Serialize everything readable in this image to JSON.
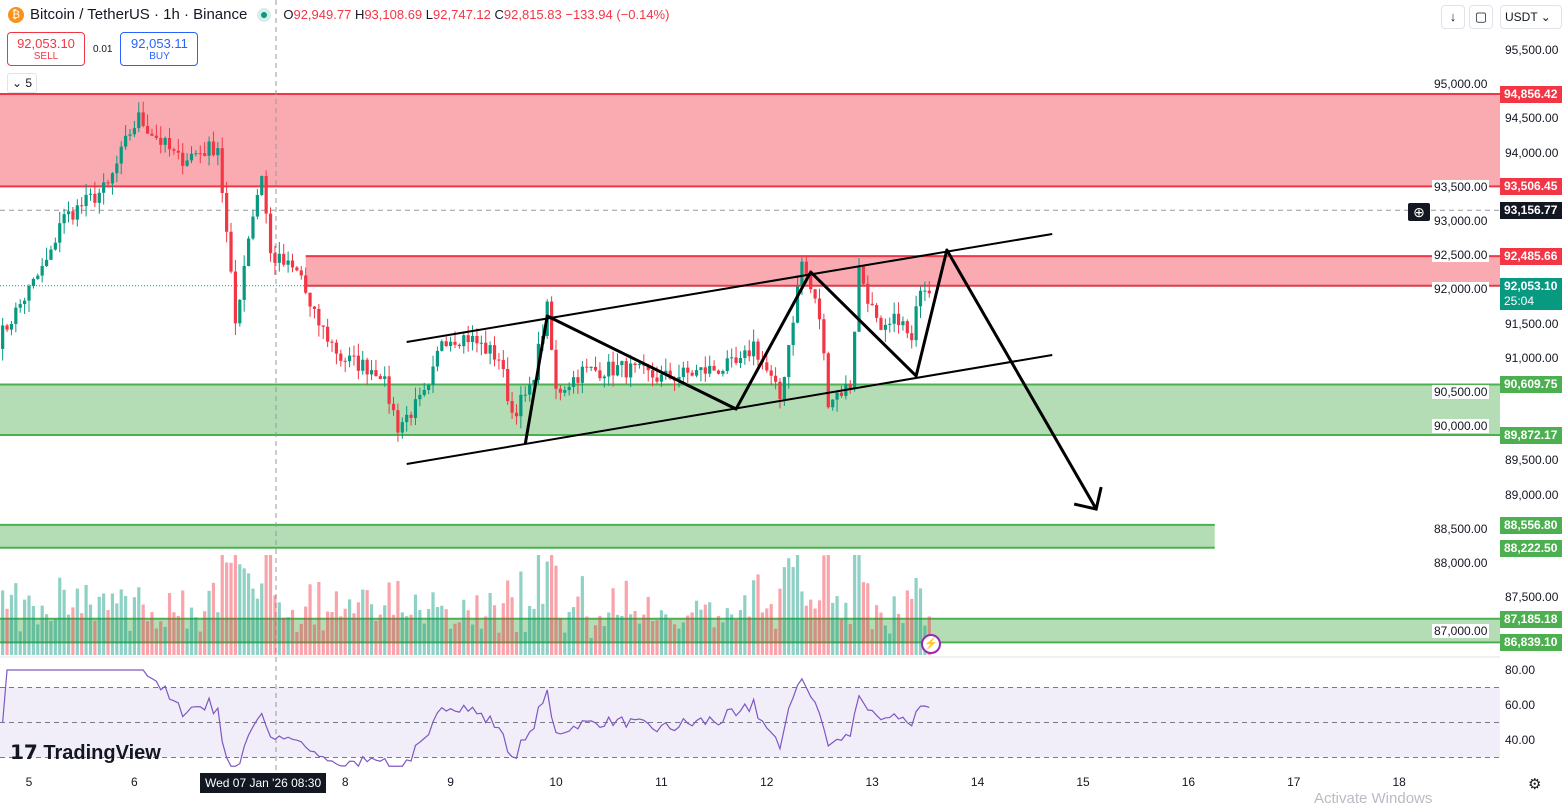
{
  "header": {
    "symbol": "Bitcoin / TetherUS · 1h · Binance",
    "o_label": "O",
    "o": "92,949.77",
    "h_label": "H",
    "h": "93,108.69",
    "l_label": "L",
    "l": "92,747.12",
    "c_label": "C",
    "c": "92,815.83",
    "change": "−133.94 (−0.14%)"
  },
  "trade": {
    "sell_price": "92,053.10",
    "sell_label": "SELL",
    "spread": "0.01",
    "buy_price": "92,053.11",
    "buy_label": "BUY"
  },
  "indicators_collapsed": "5",
  "toolbar": {
    "currency": "USDT",
    "down_icon": "arrow-down-icon",
    "fullscreen_icon": "fullscreen-icon"
  },
  "colors": {
    "up": "#089981",
    "down": "#f23645",
    "zone_red": "#f23645",
    "zone_green": "#4caf50",
    "rsi": "#7e57c2"
  },
  "price_axis": {
    "ticks": [
      "95,500.00",
      "95,000.00",
      "94,500.00",
      "94,000.00",
      "93,500.00",
      "93,000.00",
      "92,500.00",
      "92,000.00",
      "91,500.00",
      "91,000.00",
      "90,500.00",
      "90,000.00",
      "89,500.00",
      "89,000.00",
      "88,500.00",
      "88,000.00",
      "87,500.00",
      "87,000.00"
    ],
    "tick_values": [
      95500,
      95000,
      94500,
      94000,
      93500,
      93000,
      92500,
      92000,
      91500,
      91000,
      90500,
      90000,
      89500,
      89000,
      88500,
      88000,
      87500,
      87000
    ]
  },
  "price_labels": [
    {
      "text": "94,856.42",
      "value": 94856.42,
      "kind": "red"
    },
    {
      "text": "93,506.45",
      "value": 93506.45,
      "kind": "red"
    },
    {
      "text": "93,156.77",
      "value": 93156.77,
      "kind": "dark"
    },
    {
      "text": "92,485.66",
      "value": 92485.66,
      "kind": "red"
    },
    {
      "text": "92,053.10",
      "value": 92053.1,
      "kind": "last",
      "sub": "25:04"
    },
    {
      "text": "90,609.75",
      "value": 90609.75,
      "kind": "green"
    },
    {
      "text": "89,872.17",
      "value": 89872.17,
      "kind": "green"
    },
    {
      "text": "88,556.80",
      "value": 88556.8,
      "kind": "green"
    },
    {
      "text": "88,222.50",
      "value": 88222.5,
      "kind": "green"
    },
    {
      "text": "87,185.18",
      "value": 87185.18,
      "kind": "green"
    },
    {
      "text": "86,839.10",
      "value": 86839.1,
      "kind": "green"
    }
  ],
  "rsi_axis": {
    "ticks": [
      "80.00",
      "60.00",
      "40.00"
    ],
    "values": [
      80,
      60,
      40
    ],
    "upper": 70,
    "middle": 50,
    "lower": 30
  },
  "time_axis": {
    "ticks": [
      {
        "t": "5",
        "day": 5
      },
      {
        "t": "6",
        "day": 6
      },
      {
        "t": "8",
        "day": 8
      },
      {
        "t": "9",
        "day": 9
      },
      {
        "t": "10",
        "day": 10
      },
      {
        "t": "11",
        "day": 11
      },
      {
        "t": "12",
        "day": 12
      },
      {
        "t": "13",
        "day": 13
      },
      {
        "t": "14",
        "day": 14
      },
      {
        "t": "15",
        "day": 15
      },
      {
        "t": "16",
        "day": 16
      },
      {
        "t": "17",
        "day": 17
      },
      {
        "t": "18",
        "day": 18
      }
    ],
    "crosshair": "Wed 07 Jan '26   08:30"
  },
  "zones": [
    {
      "from": "01-04 12:00",
      "to": "01-20 00:00",
      "top": 94856.42,
      "bottom": 93506.45,
      "kind": "red"
    },
    {
      "from": "01-07 15:00",
      "to": "01-20 00:00",
      "top": 92485.66,
      "bottom": 92053.1,
      "kind": "red"
    },
    {
      "from": "01-04 12:00",
      "to": "01-20 00:00",
      "top": 90609.75,
      "bottom": 89872.17,
      "kind": "green"
    },
    {
      "from": "01-04 12:00",
      "to": "01-16 06:00",
      "top": 88556.8,
      "bottom": 88222.5,
      "kind": "green"
    },
    {
      "from": "01-04 12:00",
      "to": "01-20 00:00",
      "top": 87185.18,
      "bottom": 86839.1,
      "kind": "green"
    }
  ],
  "drawings": {
    "channel_upper": [
      [
        "01-08 14:00",
        91231
      ],
      [
        "01-14 17:00",
        92810
      ]
    ],
    "channel_lower": [
      [
        "01-08 14:00",
        89447
      ],
      [
        "01-14 17:00",
        91041
      ]
    ],
    "zigzag": [
      [
        "01-09 17:00",
        89740
      ],
      [
        "01-09 22:00",
        91611
      ],
      [
        "01-11 17:00",
        90251
      ],
      [
        "01-12 10:00",
        92254
      ],
      [
        "01-13 10:00",
        90734
      ],
      [
        "01-13 17:00",
        92576
      ],
      [
        "01-15 03:00",
        88789
      ]
    ]
  },
  "price_path": [
    [
      "01-04 17:00",
      91260
    ],
    [
      "01-05 05:00",
      92500
    ],
    [
      "01-05 07:00",
      93000
    ],
    [
      "01-05 18:00",
      93500
    ],
    [
      "01-05 23:00",
      94300
    ],
    [
      "01-06 01:00",
      94500
    ],
    [
      "01-06 10:00",
      93900
    ],
    [
      "01-06 19:00",
      94100
    ],
    [
      "01-06 23:00",
      91500
    ],
    [
      "01-07 02:00",
      92800
    ],
    [
      "01-07 05:00",
      93700
    ],
    [
      "01-07 07:00",
      92500
    ],
    [
      "01-07 14:00",
      92200
    ],
    [
      "01-07 16:00",
      91700
    ],
    [
      "01-07 23:00",
      91000
    ],
    [
      "01-08 08:00",
      90800
    ],
    [
      "01-08 12:00",
      90000
    ],
    [
      "01-08 19:00",
      90500
    ],
    [
      "01-08 22:00",
      91300
    ],
    [
      "01-09 04:00",
      91300
    ],
    [
      "01-09 11:00",
      91000
    ],
    [
      "01-09 14:00",
      90200
    ],
    [
      "01-09 18:00",
      90500
    ],
    [
      "01-09 22:00",
      91700
    ],
    [
      "01-10 00:00",
      90500
    ],
    [
      "01-10 06:00",
      90800
    ],
    [
      "01-10 15:00",
      90850
    ],
    [
      "01-11 00:00",
      90700
    ],
    [
      "01-11 09:00",
      90800
    ],
    [
      "01-11 18:00",
      90900
    ],
    [
      "01-11 21:00",
      91200
    ],
    [
      "01-12 03:00",
      90400
    ],
    [
      "01-12 08:00",
      92400
    ],
    [
      "01-12 12:00",
      91600
    ],
    [
      "01-12 14:00",
      90400
    ],
    [
      "01-12 19:00",
      90600
    ],
    [
      "01-12 21:00",
      92300
    ],
    [
      "01-13 02:00",
      91300
    ],
    [
      "01-13 06:00",
      91600
    ],
    [
      "01-13 09:00",
      91200
    ],
    [
      "01-13 11:00",
      92100
    ],
    [
      "01-13 13:00",
      92053
    ]
  ],
  "branding": "TradingView",
  "watermark": "Activate Windows"
}
